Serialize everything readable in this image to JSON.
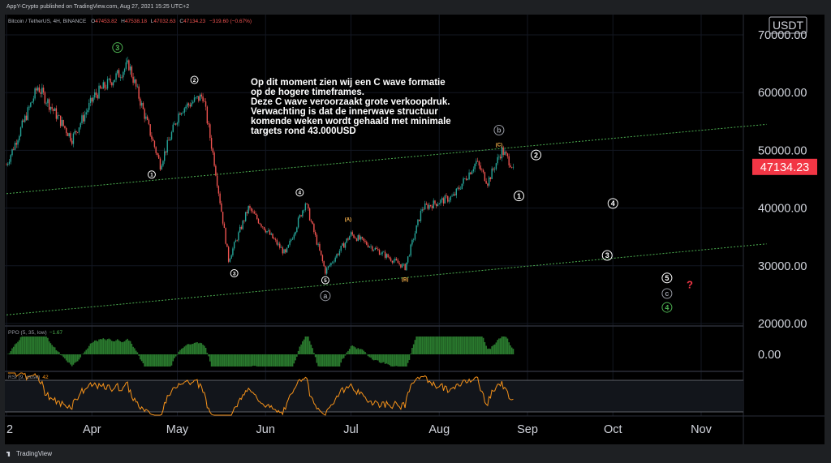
{
  "header": {
    "published": "AppY-Crypto published on TradingView.com, Aug 27, 2021 15:25 UTC+2"
  },
  "legend": {
    "symbol": "Bitcoin / TetherUS, 4H, BINANCE",
    "o_label": "O",
    "o": "47453.82",
    "h_label": "H",
    "h": "47538.18",
    "l_label": "L",
    "l": "47032.63",
    "c_label": "C",
    "c": "47134.23",
    "change": "−319.60 (−0.67%)"
  },
  "annotation": {
    "lines": [
      "Op dit moment zien wij een C wave formatie",
      "op de hogere timeframes.",
      "Deze C wave veroorzaakt grote verkoopdruk.",
      "Verwachting is dat de innerwave structuur",
      "komende weken wordt gehaald met minimale",
      "targets rond 43.000USD"
    ]
  },
  "currency": "USDT",
  "price_badge": "47134.23",
  "indicators": {
    "ppo_label": "PPO (5, 35, low)",
    "ppo_value": "−1.67",
    "ppo_axis": "0.00",
    "rsi_label": "RSI (9, close)",
    "rsi_value": "42"
  },
  "footer": {
    "brand": "TradingView"
  },
  "colors": {
    "up": "#26a69a",
    "down": "#ef5350",
    "price_badge": "#f23645",
    "channel": "#4caf50",
    "ppo": "#2a7a2e",
    "rsi": "#f7931a",
    "wave_label": "#ffffff",
    "wave_green": "#4caf50",
    "wave_gray": "#9598a1",
    "wave_orange": "#ffb74d",
    "question": "#f23645"
  },
  "chart_data": {
    "type": "candlestick",
    "title": "Bitcoin / TetherUS, 4H, BINANCE",
    "x_ticks": [
      "2",
      "Apr",
      "May",
      "Jun",
      "Jul",
      "Aug",
      "Sep",
      "Oct",
      "Nov"
    ],
    "x_tick_dates": [
      "2021-03-02",
      "2021-04-01",
      "2021-05-01",
      "2021-06-01",
      "2021-07-01",
      "2021-08-01",
      "2021-09-01",
      "2021-10-01",
      "2021-11-01"
    ],
    "y_ticks": [
      "70000.00",
      "60000.00",
      "50000.00",
      "40000.00",
      "30000.00",
      "20000.00"
    ],
    "y_tick_values": [
      70000,
      60000,
      50000,
      40000,
      30000,
      20000
    ],
    "ylim": [
      19000,
      73000
    ],
    "last_price": 47134.23,
    "price_path": [
      {
        "date": "2021-03-02",
        "price": 47500
      },
      {
        "date": "2021-03-13",
        "price": 61000
      },
      {
        "date": "2021-03-25",
        "price": 52000
      },
      {
        "date": "2021-04-02",
        "price": 59500
      },
      {
        "date": "2021-04-14",
        "price": 64800
      },
      {
        "date": "2021-04-25",
        "price": 47500
      },
      {
        "date": "2021-05-02",
        "price": 57000
      },
      {
        "date": "2021-05-10",
        "price": 59500
      },
      {
        "date": "2021-05-14",
        "price": 48000
      },
      {
        "date": "2021-05-19",
        "price": 31000
      },
      {
        "date": "2021-05-26",
        "price": 40000
      },
      {
        "date": "2021-06-08",
        "price": 32000
      },
      {
        "date": "2021-06-15",
        "price": 41000
      },
      {
        "date": "2021-06-22",
        "price": 29000
      },
      {
        "date": "2021-07-01",
        "price": 35500
      },
      {
        "date": "2021-07-20",
        "price": 29700
      },
      {
        "date": "2021-07-26",
        "price": 40000
      },
      {
        "date": "2021-08-06",
        "price": 42000
      },
      {
        "date": "2021-08-14",
        "price": 48000
      },
      {
        "date": "2021-08-18",
        "price": 44500
      },
      {
        "date": "2021-08-23",
        "price": 50000
      },
      {
        "date": "2021-08-27",
        "price": 47134
      }
    ],
    "channel_lines": [
      {
        "from": {
          "date": "2021-03-02",
          "price": 42500
        },
        "to": {
          "date": "2021-11-24",
          "price": 54500
        }
      },
      {
        "from": {
          "date": "2021-03-02",
          "price": 21500
        },
        "to": {
          "date": "2021-11-24",
          "price": 33800
        }
      }
    ],
    "wave_labels": [
      {
        "label": "3",
        "date": "2021-04-10",
        "price": 67800,
        "style": "green"
      },
      {
        "label": "1",
        "date": "2021-04-22",
        "price": 45800,
        "style": "small"
      },
      {
        "label": "2",
        "date": "2021-05-07",
        "price": 62200,
        "style": "small"
      },
      {
        "label": "3",
        "date": "2021-05-21",
        "price": 28700,
        "style": "small"
      },
      {
        "label": "4",
        "date": "2021-06-13",
        "price": 42700,
        "style": "small"
      },
      {
        "label": "5",
        "date": "2021-06-22",
        "price": 27500,
        "style": "small"
      },
      {
        "label": "a",
        "date": "2021-06-22",
        "price": 24800,
        "style": "gray"
      },
      {
        "label": "A",
        "date": "2021-06-30",
        "price": 38200,
        "style": "orange"
      },
      {
        "label": "B",
        "date": "2021-07-20",
        "price": 27800,
        "style": "orange"
      },
      {
        "label": "b",
        "date": "2021-08-22",
        "price": 53500,
        "style": "gray"
      },
      {
        "label": "C",
        "date": "2021-08-22",
        "price": 51100,
        "style": "orange"
      },
      {
        "label": "1",
        "date": "2021-08-29",
        "price": 42100,
        "style": "white"
      },
      {
        "label": "2",
        "date": "2021-09-04",
        "price": 49200,
        "style": "white"
      },
      {
        "label": "4",
        "date": "2021-10-01",
        "price": 40800,
        "style": "white"
      },
      {
        "label": "3",
        "date": "2021-09-29",
        "price": 31800,
        "style": "white"
      },
      {
        "label": "5",
        "date": "2021-10-20",
        "price": 27900,
        "style": "white"
      },
      {
        "label": "c",
        "date": "2021-10-20",
        "price": 25200,
        "style": "gray"
      },
      {
        "label": "4",
        "date": "2021-10-20",
        "price": 22800,
        "style": "green"
      },
      {
        "label": "?",
        "date": "2021-10-28",
        "price": 26800,
        "style": "question"
      }
    ],
    "ppo": {
      "label": "PPO (5, 35, low)",
      "last": -1.67
    },
    "rsi": {
      "label": "RSI (9, close)",
      "last": 42
    }
  }
}
